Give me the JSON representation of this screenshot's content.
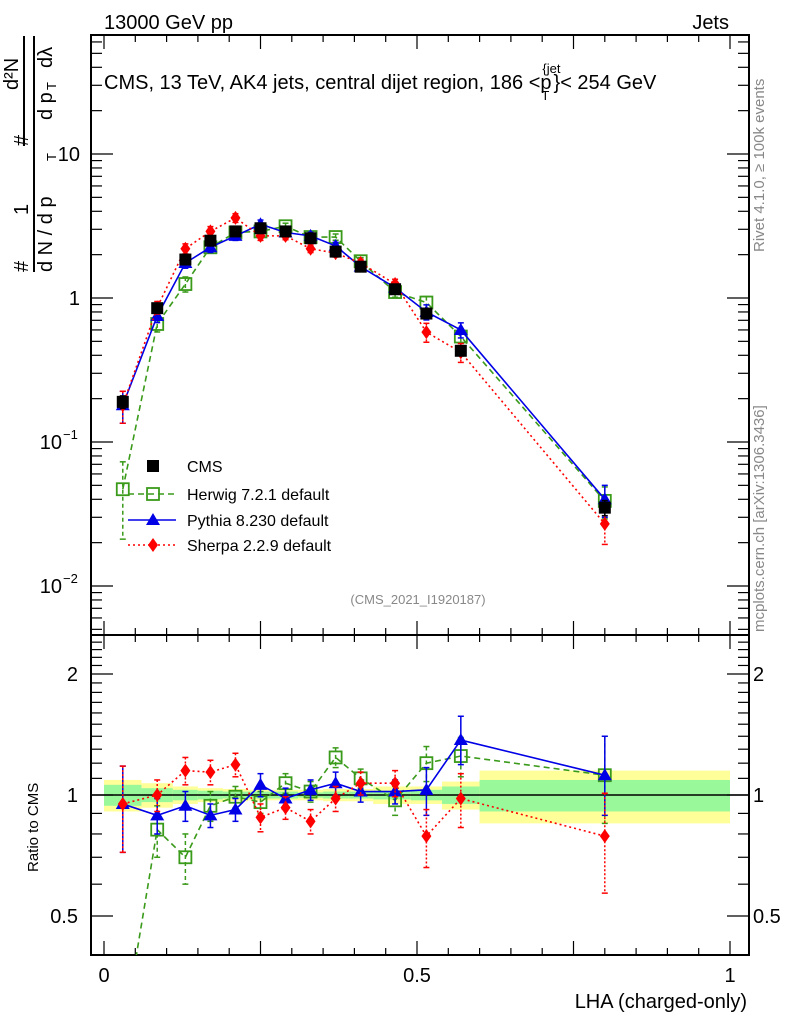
{
  "header": {
    "left": "13000 GeV pp",
    "right": "Jets"
  },
  "side_labels": {
    "rivet": "Rivet 4.1.0, ≥ 100k events",
    "mcplots": "mcplots.cern.ch [arXiv:1306.3436]"
  },
  "chart_data": [
    {
      "type": "line",
      "panel": "main",
      "title": "CMS, 13 TeV, AK4 jets, central dijet region, 186 <p_T^{jet}< 254 GeV",
      "title_parts": {
        "prefix": "CMS, 13 TeV, AK4 jets, central dijet region, 186 <",
        "sym": "p",
        "sub": "T",
        "sup": "{jet",
        "suffix": "}< 254 GeV"
      },
      "ylabel": "1/(dN/dpT) d²N/(dpT dλ)",
      "ylabel_parts": {
        "hash": "#",
        "one": "1",
        "den": "d N / d p",
        "den_sub": "T",
        "num": "d²N",
        "num_den": "d p",
        "num_den_sub": "T",
        "lambda": "dλ"
      },
      "yscale": "log",
      "ylim": [
        0.005,
        60
      ],
      "xlim": [
        -0.02,
        1.03
      ],
      "ytick_labels": [
        {
          "value": 10,
          "label": "10"
        },
        {
          "value": 1,
          "label": "1"
        },
        {
          "value": 0.1,
          "label": "10",
          "exp": "−1"
        },
        {
          "value": 0.01,
          "label": "10",
          "exp": "−2"
        }
      ],
      "annotation": "(CMS_2021_I1920187)",
      "legend_position": "center-left",
      "bin_edges": [
        0.0,
        0.06,
        0.11,
        0.15,
        0.19,
        0.23,
        0.27,
        0.31,
        0.35,
        0.39,
        0.43,
        0.49,
        0.54,
        0.6,
        1.0
      ],
      "x": [
        0.03,
        0.085,
        0.13,
        0.17,
        0.21,
        0.25,
        0.29,
        0.33,
        0.37,
        0.41,
        0.465,
        0.515,
        0.57,
        0.8
      ],
      "series": [
        {
          "name": "CMS",
          "marker": "filled-square",
          "color": "#000000",
          "values": [
            0.19,
            0.85,
            1.85,
            2.5,
            2.9,
            3.05,
            2.9,
            2.6,
            2.1,
            1.65,
            1.15,
            0.78,
            0.43,
            0.035
          ],
          "rel_err": [
            0.1,
            0.05,
            0.04,
            0.03,
            0.03,
            0.03,
            0.03,
            0.03,
            0.03,
            0.03,
            0.04,
            0.06,
            0.06,
            0.12
          ]
        },
        {
          "name": "Herwig 7.2.1 default",
          "marker": "open-square",
          "line": "dashed",
          "color": "#3a9a1a",
          "values": [
            0.047,
            0.66,
            1.25,
            2.25,
            2.85,
            2.9,
            3.15,
            2.65,
            2.65,
            1.8,
            1.1,
            0.93,
            0.54,
            0.039
          ],
          "rel_err": [
            0.55,
            0.12,
            0.12,
            0.06,
            0.05,
            0.05,
            0.05,
            0.05,
            0.05,
            0.06,
            0.08,
            0.1,
            0.1,
            0.25
          ]
        },
        {
          "name": "Pythia 8.230 default",
          "marker": "filled-triangle",
          "line": "solid",
          "color": "#0000e6",
          "values": [
            0.18,
            0.75,
            1.75,
            2.25,
            2.7,
            3.25,
            2.85,
            2.7,
            2.3,
            1.65,
            1.18,
            0.8,
            0.6,
            0.04
          ],
          "rel_err": [
            0.25,
            0.1,
            0.08,
            0.08,
            0.07,
            0.07,
            0.06,
            0.06,
            0.06,
            0.06,
            0.08,
            0.12,
            0.12,
            0.25
          ]
        },
        {
          "name": "Sherpa 2.2.9 default",
          "marker": "filled-diamond",
          "line": "dotted",
          "color": "#ff0000",
          "values": [
            0.18,
            0.86,
            2.2,
            2.9,
            3.6,
            2.7,
            2.7,
            2.2,
            2.05,
            1.75,
            1.25,
            0.58,
            0.42,
            0.027
          ],
          "rel_err": [
            0.25,
            0.1,
            0.08,
            0.08,
            0.07,
            0.07,
            0.06,
            0.06,
            0.06,
            0.06,
            0.08,
            0.15,
            0.15,
            0.28
          ]
        }
      ]
    },
    {
      "type": "line",
      "panel": "ratio",
      "ylabel": "Ratio to CMS",
      "xlabel": "LHA (charged-only)",
      "yscale": "log",
      "ylim": [
        0.37,
        2.5
      ],
      "xlim": [
        -0.02,
        1.03
      ],
      "xtick_labels": [
        {
          "value": 0,
          "label": "0"
        },
        {
          "value": 0.5,
          "label": "0.5"
        },
        {
          "value": 1,
          "label": "1"
        }
      ],
      "ytick_labels": [
        {
          "value": 2,
          "label": "2"
        },
        {
          "value": 1,
          "label": "1"
        },
        {
          "value": 0.5,
          "label": "0.5"
        }
      ],
      "band_stat_rel": [
        0.06,
        0.04,
        0.03,
        0.025,
        0.02,
        0.02,
        0.02,
        0.015,
        0.02,
        0.02,
        0.025,
        0.03,
        0.05,
        0.09
      ],
      "band_total_rel": [
        0.09,
        0.07,
        0.05,
        0.04,
        0.035,
        0.03,
        0.03,
        0.03,
        0.035,
        0.035,
        0.05,
        0.05,
        0.08,
        0.15
      ],
      "band_colors": {
        "inner": "#99f99a",
        "outer": "#ffff99"
      },
      "series": [
        {
          "name": "Herwig 7.2.1 default",
          "values": [
            0.25,
            0.82,
            0.7,
            0.94,
            0.99,
            0.96,
            1.07,
            1.02,
            1.24,
            1.1,
            0.97,
            1.2,
            1.25,
            1.12
          ],
          "err_lo": [
            0.0,
            0.12,
            0.1,
            0.08,
            0.06,
            0.06,
            0.06,
            0.06,
            0.07,
            0.06,
            0.08,
            0.12,
            0.14,
            0.27
          ],
          "err_hi": [
            0.0,
            0.12,
            0.1,
            0.08,
            0.06,
            0.06,
            0.06,
            0.06,
            0.07,
            0.06,
            0.08,
            0.12,
            0.14,
            0.28
          ]
        },
        {
          "name": "Pythia 8.230 default",
          "values": [
            0.95,
            0.89,
            0.94,
            0.89,
            0.92,
            1.06,
            0.98,
            1.03,
            1.07,
            1.02,
            1.02,
            1.03,
            1.37,
            1.12
          ],
          "err_lo": [
            0.23,
            0.09,
            0.08,
            0.06,
            0.06,
            0.07,
            0.06,
            0.06,
            0.07,
            0.06,
            0.07,
            0.14,
            0.18,
            0.23
          ],
          "err_hi": [
            0.23,
            0.09,
            0.08,
            0.06,
            0.06,
            0.07,
            0.06,
            0.06,
            0.07,
            0.06,
            0.07,
            0.14,
            0.2,
            0.28
          ]
        },
        {
          "name": "Sherpa 2.2.9 default",
          "values": [
            0.95,
            1.0,
            1.15,
            1.14,
            1.19,
            0.88,
            0.93,
            0.86,
            0.98,
            1.07,
            1.07,
            0.79,
            0.98,
            0.79
          ],
          "err_lo": [
            0.23,
            0.09,
            0.09,
            0.08,
            0.08,
            0.07,
            0.06,
            0.06,
            0.07,
            0.07,
            0.08,
            0.13,
            0.15,
            0.22
          ],
          "err_hi": [
            0.23,
            0.09,
            0.09,
            0.08,
            0.08,
            0.07,
            0.06,
            0.06,
            0.07,
            0.07,
            0.08,
            0.13,
            0.15,
            0.22
          ]
        }
      ]
    }
  ]
}
